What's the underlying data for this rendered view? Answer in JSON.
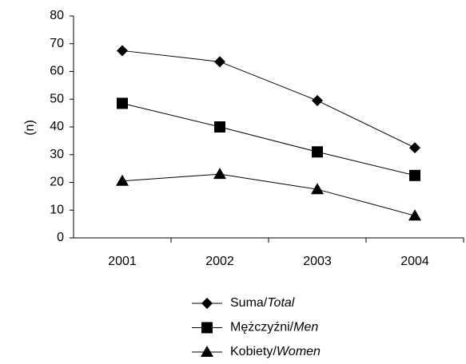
{
  "chart_data": {
    "type": "line",
    "y_label": "(n)",
    "categories": [
      "2001",
      "2002",
      "2003",
      "2004"
    ],
    "series": [
      {
        "name": "Suma/Total",
        "color": "#000000",
        "marker": "diamond",
        "values": [
          67.5,
          63.5,
          49.5,
          32.5
        ]
      },
      {
        "name": "Mężczyźni/Men",
        "color": "#000000",
        "marker": "square",
        "values": [
          48.5,
          40,
          31,
          22.5
        ]
      },
      {
        "name": "Kobiety/Women",
        "color": "#000000",
        "marker": "triangle",
        "values": [
          20.5,
          23,
          17.5,
          8
        ]
      }
    ],
    "ylim": [
      0,
      80
    ],
    "yticks": [
      0,
      10,
      20,
      30,
      40,
      50,
      60,
      70,
      80
    ],
    "grid": false,
    "legend": "bottom"
  }
}
